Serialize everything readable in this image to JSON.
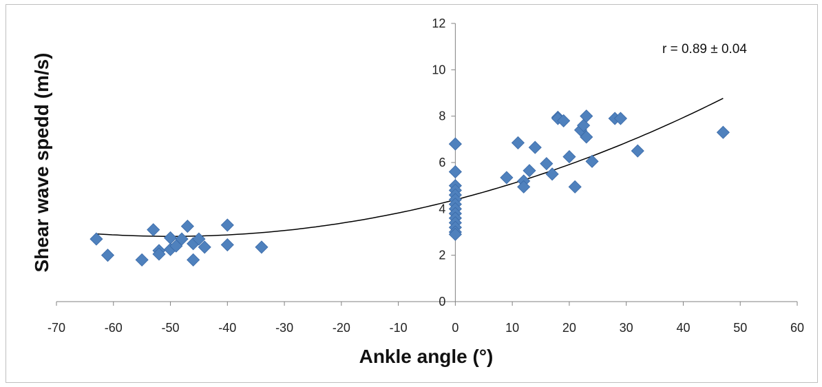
{
  "chart_data": {
    "type": "scatter",
    "title": "",
    "xlabel": "Ankle angle (°)",
    "ylabel": "Shear wave spedd (m/s)",
    "xlim": [
      -70,
      60
    ],
    "ylim": [
      0,
      12
    ],
    "xticks": [
      "-70",
      "-60",
      "-50",
      "-40",
      "-30",
      "-20",
      "-10",
      "0",
      "10",
      "20",
      "30",
      "40",
      "50",
      "60"
    ],
    "yticks": [
      "0",
      "2",
      "4",
      "6",
      "8",
      "10",
      "12"
    ],
    "grid": false,
    "legend": false,
    "annotation": "r = 0.89 ± 0.04",
    "marker": "diamond",
    "colors": {
      "points": "#4f81bd",
      "points_edge": "#3a6aa8",
      "trendline": "#000000",
      "axis": "#808080"
    },
    "series": [
      {
        "points": [
          [
            -63,
            2.7
          ],
          [
            -61,
            2.0
          ],
          [
            -55,
            1.8
          ],
          [
            -53,
            3.1
          ],
          [
            -52,
            2.2
          ],
          [
            -52,
            2.05
          ],
          [
            -50,
            2.75
          ],
          [
            -50,
            2.25
          ],
          [
            -49,
            2.4
          ],
          [
            -48,
            2.7
          ],
          [
            -47,
            3.25
          ],
          [
            -46,
            2.5
          ],
          [
            -46,
            1.8
          ],
          [
            -45,
            2.7
          ],
          [
            -44,
            2.35
          ],
          [
            -40,
            3.3
          ],
          [
            -40,
            2.45
          ],
          [
            -34,
            2.35
          ],
          [
            0,
            6.8
          ],
          [
            0,
            5.6
          ],
          [
            0,
            5.0
          ],
          [
            0,
            4.8
          ],
          [
            0,
            4.6
          ],
          [
            0,
            4.4
          ],
          [
            0,
            4.2
          ],
          [
            0,
            4.0
          ],
          [
            0,
            3.8
          ],
          [
            0,
            3.6
          ],
          [
            0,
            3.4
          ],
          [
            0,
            3.2
          ],
          [
            0,
            3.0
          ],
          [
            0,
            2.9
          ],
          [
            9,
            5.35
          ],
          [
            11,
            6.85
          ],
          [
            12,
            5.2
          ],
          [
            12,
            4.95
          ],
          [
            13,
            5.65
          ],
          [
            14,
            6.65
          ],
          [
            16,
            5.95
          ],
          [
            17,
            5.5
          ],
          [
            18,
            7.95
          ],
          [
            18,
            7.9
          ],
          [
            19,
            7.8
          ],
          [
            20,
            6.25
          ],
          [
            21,
            4.95
          ],
          [
            22,
            7.4
          ],
          [
            22.5,
            7.6
          ],
          [
            23,
            8.0
          ],
          [
            23,
            7.1
          ],
          [
            24,
            6.05
          ],
          [
            28,
            7.9
          ],
          [
            29,
            7.9
          ],
          [
            32,
            6.5
          ],
          [
            47,
            7.3
          ]
        ]
      }
    ],
    "trendline": {
      "type": "polynomial",
      "x_range": [
        -63,
        47
      ],
      "coefficients": [
        4.3939,
        0.063286,
        0.000634
      ]
    }
  }
}
